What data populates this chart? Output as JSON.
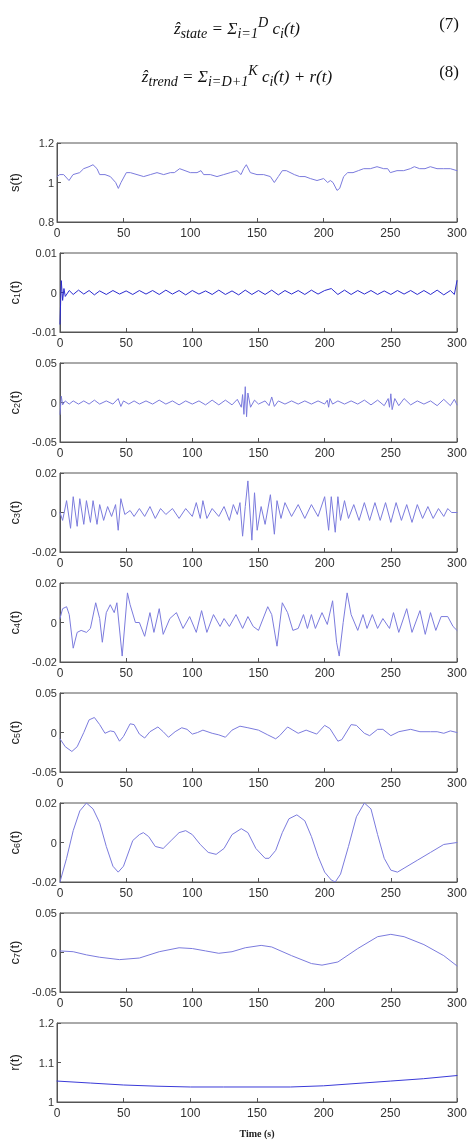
{
  "chart_data": [
    {
      "type": "line",
      "ylabel": "s(t)",
      "marker": "none",
      "xlim": [
        0,
        300
      ],
      "xticks": [
        0,
        50,
        100,
        150,
        200,
        250,
        300
      ],
      "ylim": [
        0.8,
        1.2
      ],
      "yticks": [
        0.8,
        1,
        1.2
      ],
      "annotations": [
        "ẑ$_{state}$ = Σ$_{i=1}$$^{D}$ c$_{i}$(t)",
        "(7)",
        "ẑ$_{trend}$ = Σ$_{i=D+1}$$^{K}$ c$_{i}$(t) + r(t)",
        "(8)"
      ],
      "series": [
        {
          "color": "#7b7bdd",
          "x": [
            0,
            2,
            5,
            9,
            12,
            17,
            20,
            24,
            27,
            30,
            32,
            36,
            40,
            44,
            46,
            48,
            52,
            55,
            60,
            65,
            70,
            75,
            80,
            85,
            88,
            92,
            96,
            100,
            105,
            108,
            110,
            115,
            120,
            125,
            130,
            135,
            138,
            140,
            142,
            145,
            150,
            155,
            160,
            163,
            166,
            169,
            172,
            178,
            182,
            186,
            190,
            195,
            200,
            203,
            205,
            207,
            210,
            212,
            215,
            218,
            222,
            226,
            230,
            235,
            240,
            245,
            248,
            250,
            255,
            260,
            265,
            268,
            272,
            276,
            280,
            285,
            290,
            295,
            300
          ],
          "values": [
            1.03,
            1.04,
            1.04,
            1.01,
            1.04,
            1.05,
            1.07,
            1.08,
            1.09,
            1.07,
            1.04,
            1.04,
            1.03,
            1.0,
            0.97,
            1.0,
            1.05,
            1.05,
            1.04,
            1.03,
            1.04,
            1.05,
            1.04,
            1.05,
            1.05,
            1.07,
            1.06,
            1.05,
            1.05,
            1.06,
            1.04,
            1.04,
            1.03,
            1.04,
            1.05,
            1.06,
            1.04,
            1.07,
            1.09,
            1.05,
            1.04,
            1.04,
            1.03,
            1.0,
            1.03,
            1.06,
            1.06,
            1.04,
            1.03,
            1.03,
            1.02,
            1.01,
            1.02,
            1.0,
            1.01,
            1.0,
            0.96,
            0.97,
            1.03,
            1.05,
            1.05,
            1.06,
            1.07,
            1.07,
            1.08,
            1.07,
            1.07,
            1.05,
            1.06,
            1.06,
            1.07,
            1.08,
            1.07,
            1.07,
            1.08,
            1.07,
            1.07,
            1.07,
            1.06
          ]
        }
      ]
    },
    {
      "type": "line",
      "ylabel": "c$_{1}$(t)",
      "marker": "none",
      "xlim": [
        0,
        300
      ],
      "xticks": [
        0,
        50,
        100,
        150,
        200,
        250,
        300
      ],
      "ylim": [
        -0.01,
        0.01
      ],
      "yticks": [
        -0.01,
        0,
        0.01
      ],
      "series": [
        {
          "color": "#2b2bcf",
          "x": [
            0,
            1,
            2,
            3,
            4,
            7,
            10,
            14,
            18,
            22,
            26,
            30,
            35,
            40,
            45,
            50,
            55,
            60,
            65,
            70,
            75,
            80,
            85,
            90,
            95,
            100,
            105,
            110,
            115,
            120,
            125,
            130,
            135,
            140,
            145,
            150,
            155,
            160,
            165,
            170,
            175,
            180,
            185,
            190,
            195,
            200,
            205,
            210,
            215,
            220,
            225,
            230,
            235,
            240,
            245,
            250,
            255,
            260,
            265,
            270,
            275,
            280,
            285,
            290,
            295,
            298,
            300
          ],
          "values": [
            -0.008,
            0.003,
            -0.002,
            0.001,
            -0.001,
            0.0005,
            -0.0005,
            0.0006,
            -0.0004,
            0.0005,
            -0.0006,
            0.0004,
            -0.0005,
            0.0005,
            -0.0004,
            0.0004,
            -0.0005,
            0.0005,
            -0.0004,
            0.0005,
            -0.0005,
            0.0006,
            -0.0004,
            0.0005,
            -0.0006,
            0.0005,
            -0.0004,
            0.0004,
            -0.0005,
            0.0006,
            -0.0005,
            0.0004,
            -0.0006,
            0.0006,
            -0.0005,
            0.0005,
            -0.0005,
            0.0006,
            -0.0006,
            0.0005,
            -0.0004,
            0.0005,
            -0.0005,
            0.0006,
            -0.0004,
            0.0005,
            0.001,
            -0.0005,
            0.0006,
            -0.0005,
            0.0005,
            -0.0004,
            0.0005,
            -0.0005,
            0.0004,
            -0.0005,
            0.0005,
            -0.0004,
            0.0005,
            -0.0005,
            0.0005,
            -0.0005,
            0.0006,
            -0.0006,
            0.0005,
            -0.0005,
            0.003
          ]
        }
      ]
    },
    {
      "type": "line",
      "ylabel": "c$_{2}$(t)",
      "marker": "none",
      "xlim": [
        0,
        300
      ],
      "xticks": [
        0,
        50,
        100,
        150,
        200,
        250,
        300
      ],
      "ylim": [
        -0.05,
        0.05
      ],
      "yticks": [
        -0.05,
        0,
        0.05
      ],
      "series": [
        {
          "color": "#7b7bdd",
          "x": [
            0,
            1,
            2,
            4,
            7,
            10,
            14,
            18,
            22,
            26,
            30,
            35,
            40,
            44,
            46,
            48,
            52,
            56,
            60,
            65,
            70,
            75,
            80,
            85,
            90,
            95,
            100,
            105,
            110,
            115,
            120,
            125,
            130,
            134,
            137,
            138,
            139,
            140,
            141,
            142,
            144,
            147,
            150,
            155,
            158,
            160,
            162,
            165,
            170,
            175,
            180,
            185,
            190,
            195,
            200,
            202,
            203,
            204,
            206,
            210,
            215,
            220,
            225,
            230,
            235,
            240,
            245,
            248,
            249,
            250,
            251,
            253,
            256,
            260,
            265,
            270,
            275,
            280,
            285,
            290,
            295,
            298,
            300
          ],
          "values": [
            -0.015,
            0.008,
            -0.003,
            0.002,
            -0.002,
            0.002,
            -0.002,
            0.002,
            -0.002,
            0.003,
            -0.002,
            0.002,
            -0.002,
            0.005,
            -0.005,
            0.002,
            -0.002,
            0.002,
            -0.002,
            0.002,
            -0.002,
            0.003,
            -0.002,
            0.002,
            -0.003,
            0.002,
            -0.002,
            0.002,
            -0.003,
            0.003,
            -0.003,
            0.003,
            -0.003,
            0.004,
            -0.006,
            0.01,
            -0.015,
            0.02,
            -0.018,
            0.012,
            -0.006,
            0.003,
            -0.002,
            0.002,
            -0.004,
            0.007,
            -0.005,
            0.002,
            -0.002,
            0.002,
            -0.002,
            0.002,
            -0.002,
            0.002,
            -0.002,
            0.003,
            -0.006,
            0.005,
            -0.002,
            0.002,
            -0.002,
            0.002,
            -0.002,
            0.003,
            -0.003,
            0.003,
            -0.004,
            0.005,
            -0.006,
            0.011,
            -0.009,
            0.005,
            -0.004,
            0.005,
            -0.003,
            0.002,
            -0.002,
            0.002,
            -0.004,
            0.004,
            -0.004,
            0.004,
            -0.003
          ]
        }
      ]
    },
    {
      "type": "line",
      "ylabel": "c$_{3}$(t)",
      "marker": "none",
      "xlim": [
        0,
        300
      ],
      "xticks": [
        0,
        50,
        100,
        150,
        200,
        250,
        300
      ],
      "ylim": [
        -0.02,
        0.02
      ],
      "yticks": [
        -0.02,
        0,
        0.02
      ],
      "series": [
        {
          "color": "#7b7bdd",
          "x": [
            0,
            2,
            5,
            8,
            10,
            13,
            15,
            18,
            20,
            23,
            25,
            28,
            30,
            33,
            36,
            39,
            42,
            44,
            46,
            49,
            53,
            56,
            60,
            64,
            68,
            72,
            76,
            80,
            85,
            90,
            95,
            100,
            103,
            106,
            108,
            111,
            115,
            120,
            124,
            128,
            131,
            134,
            136,
            138,
            140,
            142,
            145,
            147,
            149,
            152,
            155,
            159,
            162,
            164,
            167,
            170,
            175,
            180,
            185,
            190,
            195,
            200,
            203,
            205,
            208,
            210,
            212,
            215,
            218,
            222,
            226,
            230,
            234,
            238,
            242,
            246,
            250,
            254,
            258,
            262,
            266,
            270,
            274,
            278,
            282,
            286,
            290,
            293,
            296,
            300
          ],
          "values": [
            0,
            -0.004,
            0.006,
            -0.008,
            0.008,
            -0.007,
            0.007,
            -0.006,
            0.006,
            -0.005,
            0.006,
            -0.006,
            0.004,
            -0.004,
            0.003,
            -0.002,
            0.004,
            -0.009,
            0.007,
            -0.001,
            0.001,
            -0.002,
            0.002,
            -0.002,
            0.003,
            -0.003,
            0.002,
            -0.001,
            0.002,
            -0.003,
            0.002,
            -0.002,
            0.005,
            -0.003,
            0.006,
            -0.003,
            0.002,
            -0.002,
            0.003,
            -0.004,
            0.004,
            -0.001,
            0.005,
            -0.012,
            0.003,
            0.016,
            -0.014,
            0.01,
            -0.009,
            0.003,
            -0.006,
            0.009,
            -0.011,
            0.006,
            -0.003,
            0.005,
            -0.002,
            0.004,
            -0.003,
            0.004,
            -0.002,
            0.008,
            -0.009,
            0.008,
            -0.01,
            0.008,
            -0.004,
            0.006,
            -0.003,
            0.004,
            -0.004,
            0.005,
            -0.004,
            0.005,
            -0.004,
            0.005,
            -0.005,
            0.005,
            -0.004,
            0.004,
            -0.005,
            0.004,
            -0.003,
            0.003,
            -0.003,
            0.002,
            -0.002,
            0.002,
            0,
            0
          ]
        }
      ]
    },
    {
      "type": "line",
      "ylabel": "c$_{4}$(t)",
      "marker": "none",
      "xlim": [
        0,
        300
      ],
      "xticks": [
        0,
        50,
        100,
        150,
        200,
        250,
        300
      ],
      "ylim": [
        -0.02,
        0.02
      ],
      "yticks": [
        -0.02,
        0,
        0.02
      ],
      "series": [
        {
          "color": "#7b7bdd",
          "x": [
            0,
            2,
            5,
            7,
            10,
            13,
            16,
            20,
            23,
            27,
            30,
            32,
            35,
            38,
            41,
            43,
            47,
            51,
            53,
            57,
            60,
            64,
            68,
            71,
            75,
            78,
            83,
            88,
            93,
            98,
            103,
            107,
            111,
            116,
            121,
            124,
            128,
            133,
            138,
            142,
            146,
            150,
            157,
            160,
            164,
            168,
            172,
            176,
            180,
            184,
            187,
            190,
            193,
            198,
            202,
            206,
            209,
            211,
            214,
            217,
            220,
            225,
            229,
            232,
            236,
            240,
            244,
            249,
            252,
            256,
            262,
            266,
            272,
            276,
            280,
            284,
            288,
            293,
            297,
            300
          ],
          "values": [
            0.002,
            0.007,
            0.008,
            0.004,
            -0.013,
            -0.005,
            -0.004,
            -0.005,
            -0.003,
            0.01,
            0.002,
            -0.01,
            0.005,
            0.009,
            0.005,
            0.01,
            -0.017,
            0.015,
            0.009,
            0,
            0,
            -0.007,
            0.005,
            -0.005,
            0.007,
            -0.006,
            0.002,
            0.005,
            -0.003,
            0.003,
            -0.005,
            0.006,
            -0.005,
            0.004,
            -0.002,
            0.002,
            -0.002,
            0.004,
            -0.003,
            0.003,
            -0.002,
            -0.004,
            0.008,
            0.004,
            -0.012,
            0.01,
            0.005,
            -0.004,
            -0.003,
            0.004,
            -0.003,
            0.004,
            -0.003,
            0.005,
            -0.001,
            0.011,
            -0.01,
            -0.017,
            0,
            0.015,
            0.004,
            -0.004,
            0.004,
            -0.003,
            0.004,
            -0.003,
            0.002,
            -0.003,
            0.005,
            -0.005,
            0.007,
            -0.005,
            0.006,
            -0.006,
            0.005,
            -0.004,
            0.003,
            0.003,
            -0.002,
            -0.004
          ]
        }
      ]
    },
    {
      "type": "line",
      "ylabel": "c$_{5}$(t)",
      "marker": "none",
      "xlim": [
        0,
        300
      ],
      "xticks": [
        0,
        50,
        100,
        150,
        200,
        250,
        300
      ],
      "ylim": [
        -0.05,
        0.05
      ],
      "yticks": [
        -0.05,
        0,
        0.05
      ],
      "series": [
        {
          "color": "#7b7bdd",
          "x": [
            0,
            4,
            9,
            13,
            18,
            22,
            26,
            30,
            34,
            38,
            41,
            45,
            48,
            53,
            56,
            60,
            64,
            68,
            74,
            78,
            82,
            87,
            92,
            96,
            100,
            104,
            108,
            115,
            120,
            125,
            130,
            136,
            142,
            150,
            157,
            163,
            166,
            172,
            176,
            180,
            186,
            194,
            200,
            204,
            210,
            213,
            220,
            224,
            230,
            234,
            240,
            244,
            250,
            256,
            265,
            272,
            280,
            285,
            290,
            295,
            300
          ],
          "values": [
            -0.008,
            -0.018,
            -0.024,
            -0.018,
            0,
            0.016,
            0.019,
            0.01,
            -0.001,
            0.002,
            0.001,
            -0.011,
            -0.005,
            0.011,
            0.01,
            -0.002,
            -0.007,
            0.001,
            0.007,
            0.001,
            -0.006,
            0.001,
            0.006,
            0.004,
            -0.002,
            0,
            0.003,
            -0.001,
            -0.003,
            -0.006,
            0.003,
            0.008,
            0.006,
            0.003,
            -0.003,
            -0.008,
            -0.004,
            0.007,
            0.003,
            -0.001,
            0.003,
            -0.002,
            0.009,
            0.005,
            -0.011,
            -0.009,
            0.01,
            0.009,
            -0.001,
            -0.004,
            0.004,
            0.004,
            -0.004,
            0.001,
            0.004,
            0.001,
            0.001,
            0.001,
            -0.001,
            0.002,
            0
          ]
        }
      ]
    },
    {
      "type": "line",
      "ylabel": "c$_{6}$(t)",
      "marker": "none",
      "xlim": [
        0,
        300
      ],
      "xticks": [
        0,
        50,
        100,
        150,
        200,
        250,
        300
      ],
      "ylim": [
        -0.02,
        0.02
      ],
      "yticks": [
        -0.02,
        0,
        0.02
      ],
      "series": [
        {
          "color": "#7b7bdd",
          "x": [
            0,
            5,
            10,
            15,
            20,
            25,
            30,
            35,
            40,
            44,
            48,
            55,
            60,
            63,
            67,
            72,
            78,
            84,
            90,
            95,
            100,
            106,
            112,
            118,
            124,
            130,
            137,
            142,
            148,
            155,
            158,
            163,
            168,
            173,
            179,
            185,
            190,
            195,
            200,
            205,
            208,
            212,
            218,
            224,
            230,
            235,
            240,
            245,
            250,
            255,
            260,
            270,
            280,
            290,
            300
          ],
          "values": [
            -0.02,
            -0.008,
            0.006,
            0.016,
            0.02,
            0.017,
            0.01,
            -0.002,
            -0.012,
            -0.015,
            -0.012,
            0.001,
            0.004,
            0.005,
            0.003,
            -0.002,
            -0.003,
            0.001,
            0.005,
            0.006,
            0.004,
            -0.001,
            -0.005,
            -0.006,
            -0.003,
            0.004,
            0.007,
            0.005,
            -0.003,
            -0.008,
            -0.008,
            -0.004,
            0.005,
            0.012,
            0.014,
            0.011,
            0.003,
            -0.007,
            -0.015,
            -0.019,
            -0.02,
            -0.016,
            -0.002,
            0.013,
            0.02,
            0.017,
            0.004,
            -0.008,
            -0.014,
            -0.015,
            -0.013,
            -0.009,
            -0.005,
            -0.001,
            0
          ]
        }
      ]
    },
    {
      "type": "line",
      "ylabel": "c$_{7}$(t)",
      "marker": "none",
      "xlim": [
        0,
        300
      ],
      "xticks": [
        0,
        50,
        100,
        150,
        200,
        250,
        300
      ],
      "ylim": [
        -0.05,
        0.05
      ],
      "yticks": [
        -0.05,
        0,
        0.05
      ],
      "series": [
        {
          "color": "#7b7bdd",
          "x": [
            0,
            10,
            20,
            30,
            45,
            60,
            75,
            90,
            100,
            110,
            120,
            130,
            140,
            152,
            160,
            175,
            190,
            198,
            210,
            225,
            240,
            250,
            260,
            275,
            290,
            300
          ],
          "values": [
            0.002,
            0.001,
            -0.003,
            -0.006,
            -0.009,
            -0.007,
            0.001,
            0.006,
            0.005,
            0.002,
            -0.001,
            0.001,
            0.006,
            0.009,
            0.007,
            -0.004,
            -0.014,
            -0.016,
            -0.012,
            0.005,
            0.02,
            0.023,
            0.02,
            0.01,
            -0.004,
            -0.017
          ]
        }
      ]
    },
    {
      "type": "line",
      "ylabel": "r(t)",
      "xlabel": "Time (s)",
      "marker": "none",
      "xlim": [
        0,
        300
      ],
      "xticks": [
        0,
        50,
        100,
        150,
        200,
        250,
        300
      ],
      "ylim": [
        1,
        1.2
      ],
      "yticks": [
        1,
        1.1,
        1.2
      ],
      "series": [
        {
          "color": "#3a3ad8",
          "x": [
            0,
            25,
            50,
            75,
            100,
            125,
            150,
            175,
            200,
            225,
            250,
            275,
            300
          ],
          "values": [
            1.053,
            1.048,
            1.043,
            1.04,
            1.038,
            1.038,
            1.038,
            1.038,
            1.041,
            1.047,
            1.053,
            1.059,
            1.067
          ]
        }
      ]
    }
  ]
}
